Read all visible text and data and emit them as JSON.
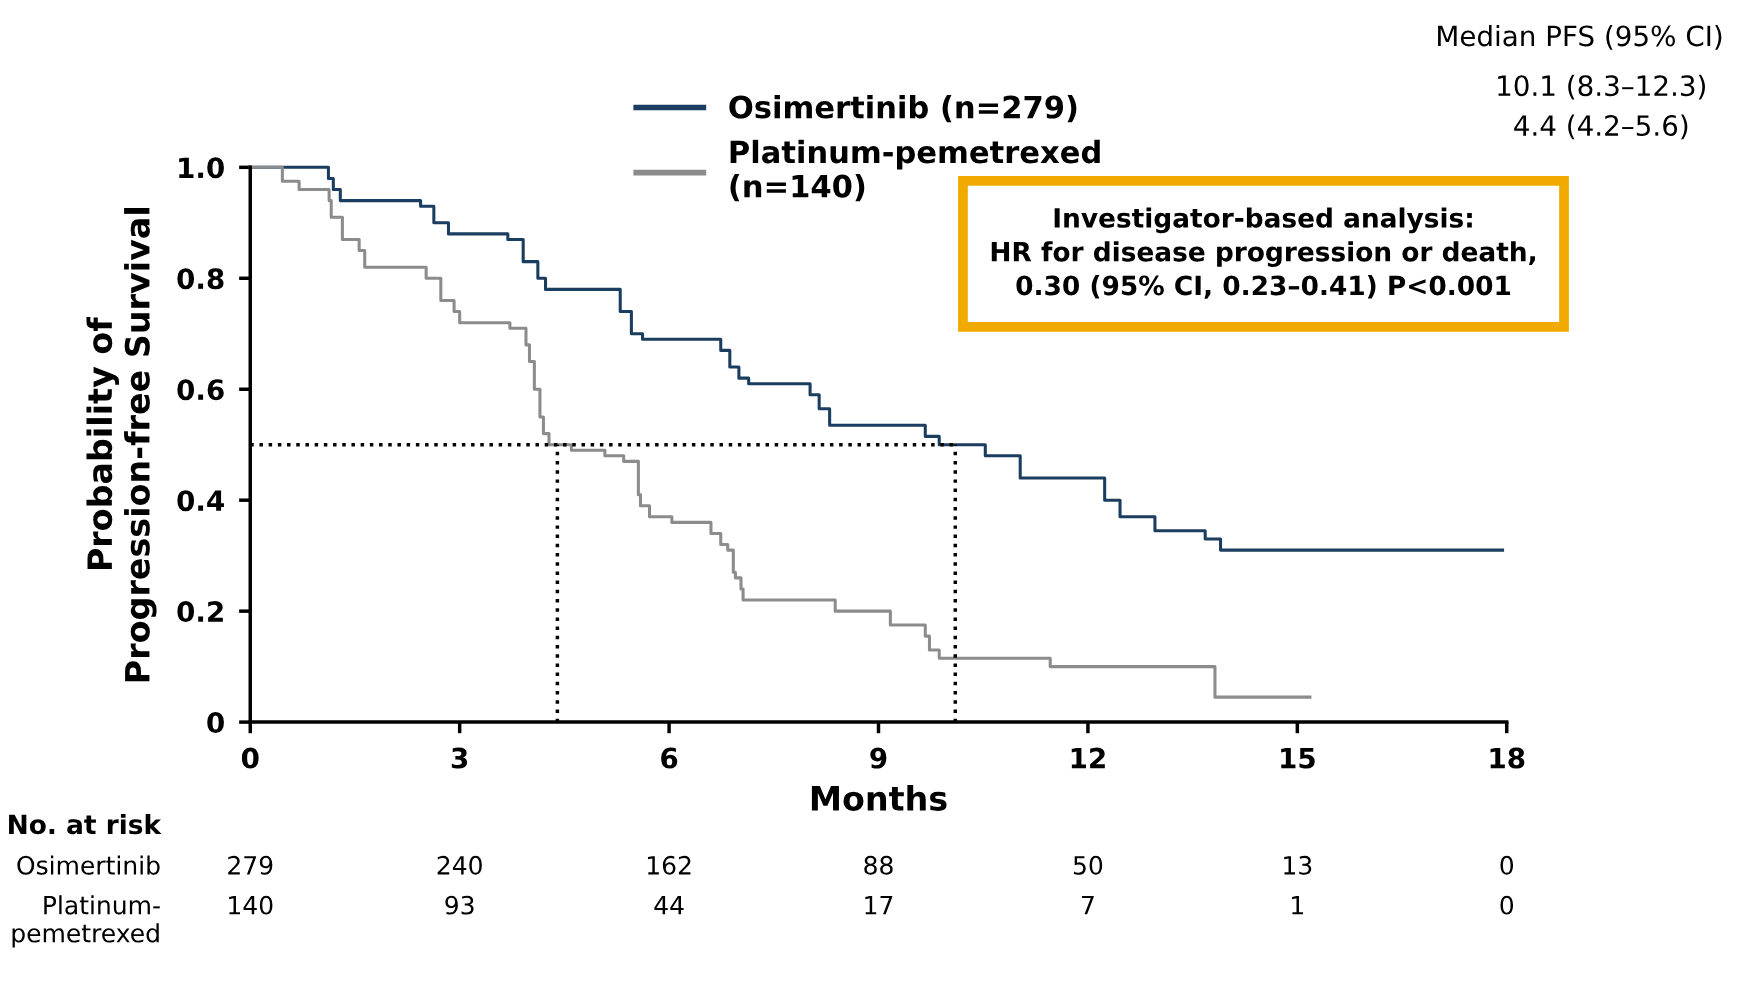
{
  "chart_data": {
    "type": "step",
    "xlabel": "Months",
    "ylabel": "Probability of\nProgression-free Survival",
    "xlim": [
      0,
      18
    ],
    "xticks": [
      0,
      3,
      6,
      9,
      12,
      15,
      18
    ],
    "ylim": [
      0,
      1.0
    ],
    "yticks": [
      0,
      0.2,
      0.4,
      0.6,
      0.8,
      {
        "value": 1.0,
        "label": "1.0"
      }
    ],
    "grid": false,
    "legend": "top right",
    "marker": "none",
    "line_style": "solid",
    "series": [
      {
        "name": "Osimertinib (n=279)",
        "color": "#1b3d5f",
        "x": [
          0,
          1.12,
          1.19,
          1.29,
          2.44,
          2.63,
          2.84,
          3.69,
          3.91,
          4.12,
          4.23,
          5.3,
          5.46,
          5.62,
          6.74,
          6.87,
          7.0,
          7.14,
          8.02,
          8.15,
          8.3,
          9.67,
          9.87,
          10.53,
          11.03,
          12.24,
          12.46,
          12.96,
          13.68,
          13.9,
          17.94
        ],
        "values": [
          1.0,
          0.98,
          0.96,
          0.94,
          0.93,
          0.9,
          0.88,
          0.87,
          0.83,
          0.8,
          0.78,
          0.74,
          0.7,
          0.69,
          0.67,
          0.64,
          0.62,
          0.61,
          0.59,
          0.565,
          0.535,
          0.515,
          0.5,
          0.48,
          0.44,
          0.4,
          0.37,
          0.345,
          0.33,
          0.31,
          0.31
        ]
      },
      {
        "name": "Platinum-pemetrexed\n(n=140)",
        "color": "#8c8c8c",
        "x": [
          0,
          0.46,
          0.7,
          1.13,
          1.16,
          1.32,
          1.56,
          1.64,
          2.52,
          2.73,
          2.92,
          3.0,
          3.72,
          3.95,
          4.0,
          4.07,
          4.15,
          4.2,
          4.28,
          4.6,
          5.08,
          5.35,
          5.56,
          5.59,
          5.72,
          6.04,
          6.6,
          6.74,
          6.84,
          6.92,
          6.95,
          7.03,
          7.06,
          8.38,
          9.17,
          9.67,
          9.73,
          9.87,
          11.46,
          13.82,
          15.18
        ],
        "values": [
          1.0,
          0.975,
          0.96,
          0.94,
          0.91,
          0.87,
          0.85,
          0.82,
          0.8,
          0.76,
          0.74,
          0.72,
          0.71,
          0.68,
          0.65,
          0.6,
          0.55,
          0.52,
          0.5,
          0.49,
          0.48,
          0.47,
          0.41,
          0.39,
          0.37,
          0.36,
          0.34,
          0.32,
          0.31,
          0.27,
          0.26,
          0.24,
          0.22,
          0.2,
          0.175,
          0.155,
          0.13,
          0.115,
          0.1,
          0.045,
          0.045
        ]
      }
    ],
    "ref_lines": [
      {
        "axis": "y",
        "value": 0.5,
        "color": "#000000",
        "line_style": "dotted"
      },
      {
        "axis": "x",
        "value": 4.4,
        "color": "#000000",
        "line_style": "dotted"
      },
      {
        "axis": "x",
        "value": 10.1,
        "color": "#000000",
        "line_style": "dotted"
      }
    ],
    "annotations": [
      "Median PFS (95% CI)",
      "10.1 (8.3–12.3)",
      "4.4 (4.2–5.6)",
      "Investigator-based analysis:\nHR for disease progression or death,\n0.30 (95% CI, 0.23–0.41) P<0.001",
      "No. at risk",
      "Osimertinib",
      "Platinum-\npemetrexed",
      "279",
      "240",
      "162",
      "88",
      "50",
      "13",
      "0",
      "140",
      "93",
      "44",
      "17",
      "7",
      "1",
      "0"
    ]
  }
}
